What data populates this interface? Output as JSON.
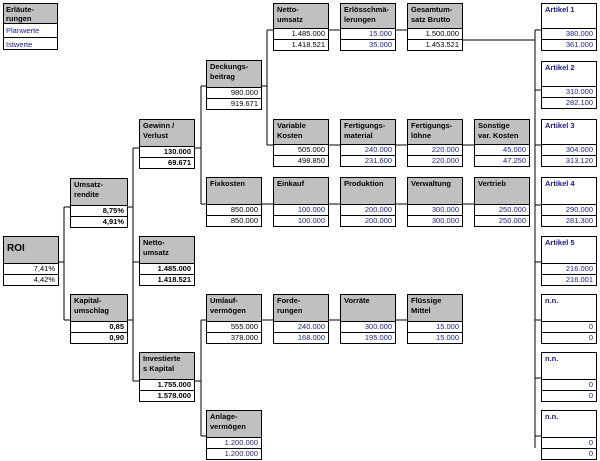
{
  "legend": {
    "title": "Erläute-\nrungen",
    "plan": "Planwerte",
    "ist": "Istwerte"
  },
  "boxes": {
    "roi": {
      "title": "ROI",
      "plan": "7,41%",
      "ist": "4,42%"
    },
    "umsatzrendite": {
      "title": "Umsatz-\nrendite",
      "plan": "8,75%",
      "ist": "4,91%"
    },
    "kapitalumschlag": {
      "title": "Kapital-\numschlag",
      "plan": "0,85",
      "ist": "0,90"
    },
    "gewinn": {
      "title": "Gewinn /\nVerlust",
      "plan": "130.000",
      "ist": "69.671"
    },
    "nettoumsatz_mid": {
      "title": "Netto-\numsatz",
      "plan": "1.485.000",
      "ist": "1.418.521"
    },
    "invest": {
      "title": "Investierte\ns Kapital",
      "plan": "1.755.000",
      "ist": "1.578.000"
    },
    "deckung": {
      "title": "Deckungs-\nbeitrag",
      "plan": "980.000",
      "ist": "919.671"
    },
    "fixkosten": {
      "title": "Fixkosten",
      "plan": "850.000",
      "ist": "850.000"
    },
    "umlauf": {
      "title": "Umlauf-\nvermögen",
      "plan": "555.000",
      "ist": "378.000"
    },
    "anlage": {
      "title": "Anlage-\nvermögen",
      "plan": "1.200.000",
      "ist": "1.200.000"
    },
    "nettoumsatz_top": {
      "title": "Netto-\numsatz",
      "plan": "1.485.000",
      "ist": "1.418.521"
    },
    "variable": {
      "title": "Variable\nKosten",
      "plan": "505.000",
      "ist": "498.850"
    },
    "einkauf": {
      "title": "Einkauf",
      "plan": "100.000",
      "ist": "100.000"
    },
    "forderungen": {
      "title": "Forde-\nrungen",
      "plan": "240.000",
      "ist": "168.000"
    },
    "erloes": {
      "title": "Erlösschmä-\nlerungen",
      "plan": "15.000",
      "ist": "35.000"
    },
    "fertmat": {
      "title": "Fertigungs-\nmaterial",
      "plan": "240.000",
      "ist": "231.600"
    },
    "produktion": {
      "title": "Produktion",
      "plan": "200.000",
      "ist": "200.000"
    },
    "vorraete": {
      "title": "Vorräte",
      "plan": "300.000",
      "ist": "195.000"
    },
    "gesamt": {
      "title": "Gesamtum-\nsatz Brutto",
      "plan": "1.500.000",
      "ist": "1.453.521"
    },
    "fertlohn": {
      "title": "Fertigungs-\nlöhne",
      "plan": "220.000",
      "ist": "220.000"
    },
    "verwaltung": {
      "title": "Verwaltung",
      "plan": "300.000",
      "ist": "300.000"
    },
    "fluessig": {
      "title": "Flüssige\nMittel",
      "plan": "15.000",
      "ist": "15.000"
    },
    "sonstige": {
      "title": "Sonstige\nvar. Kosten",
      "plan": "45.000",
      "ist": "47.250"
    },
    "vertrieb": {
      "title": "Vertrieb",
      "plan": "250.000",
      "ist": "250.000"
    },
    "art1": {
      "title": "Artikel 1",
      "plan": "380.000",
      "ist": "361.000"
    },
    "art2": {
      "title": "Artikel 2",
      "plan": "310.000",
      "ist": "282.100"
    },
    "art3": {
      "title": "Artikel 3",
      "plan": "304.000",
      "ist": "313.120"
    },
    "art4": {
      "title": "Artikel 4",
      "plan": "290.000",
      "ist": "281.300"
    },
    "art5": {
      "title": "Artikel 5",
      "plan": "216.000",
      "ist": "216.001"
    },
    "nn1": {
      "title": "n.n.",
      "plan": "0",
      "ist": "0"
    },
    "nn2": {
      "title": "n.n.",
      "plan": "0",
      "ist": "0"
    },
    "nn3": {
      "title": "n.n.",
      "plan": "0",
      "ist": "0"
    }
  },
  "colors": {
    "header_bg": "#c0c0c0",
    "value_blue": "#1a1a8c",
    "line": "#000000"
  }
}
